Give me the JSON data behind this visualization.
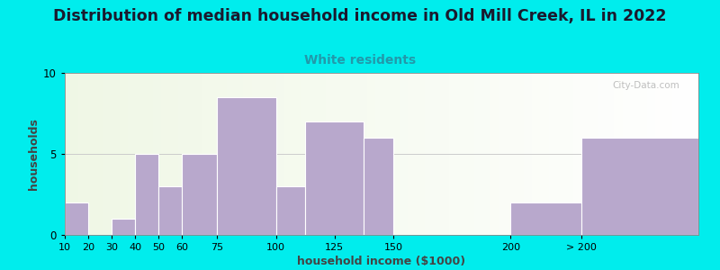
{
  "title": "Distribution of median household income in Old Mill Creek, IL in 2022",
  "subtitle": "White residents",
  "xlabel": "household income ($1000)",
  "ylabel": "households",
  "bg_outer": "#00eded",
  "bar_color": "#b8a8cc",
  "bar_edge_color": "#ffffff",
  "title_fontsize": 12.5,
  "subtitle_fontsize": 10,
  "subtitle_color": "#2299aa",
  "ylabel_fontsize": 9,
  "xlabel_fontsize": 9,
  "ylim": [
    0,
    10
  ],
  "yticks": [
    0,
    5,
    10
  ],
  "watermark": "City-Data.com",
  "bar_lefts": [
    10,
    20,
    30,
    40,
    50,
    60,
    75,
    100,
    112.5,
    137.5,
    150,
    200,
    230
  ],
  "bar_heights": [
    2,
    0,
    1,
    5,
    3,
    5,
    8.5,
    3,
    7,
    6,
    0,
    2,
    6
  ],
  "bar_widths": [
    10,
    10,
    10,
    10,
    10,
    15,
    25,
    12.5,
    25,
    12.5,
    50,
    30,
    50
  ],
  "xtick_positions": [
    10,
    20,
    30,
    40,
    50,
    60,
    75,
    100,
    125,
    150,
    200,
    230
  ],
  "xtick_labels": [
    "10",
    "20",
    "30",
    "40",
    "50",
    "60",
    "75",
    "100",
    "125",
    "150",
    "200",
    "> 200"
  ],
  "xlim": [
    10,
    280
  ]
}
